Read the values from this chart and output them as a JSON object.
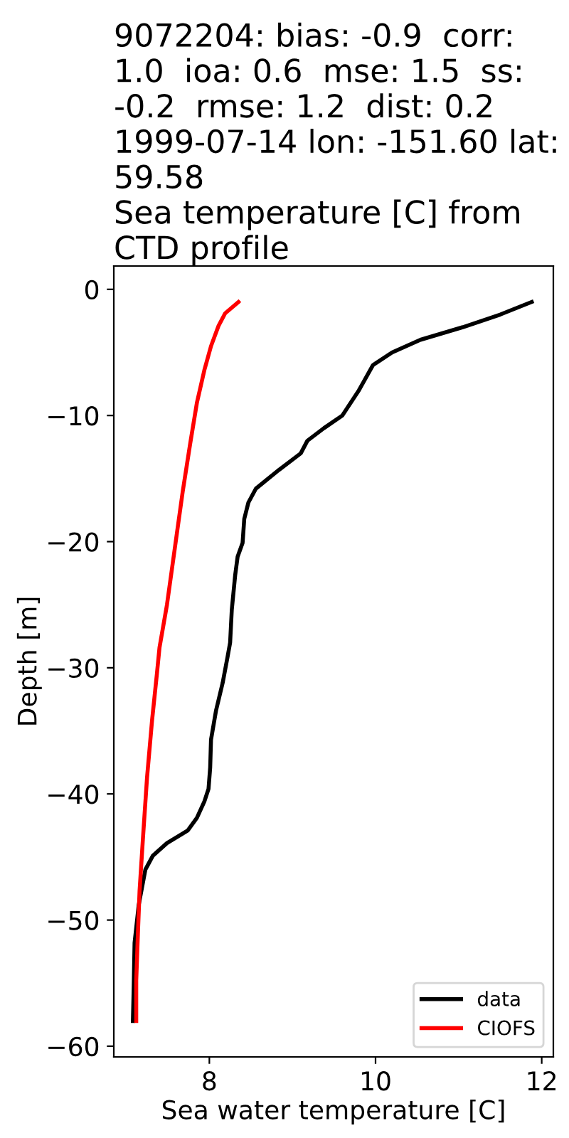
{
  "chart_data": {
    "type": "line",
    "title": "9072204: bias: -0.9  corr: 1.0  ioa: 0.6  mse: 1.5  ss: -0.2  rmse: 1.2  dist: 0.2\n1999-07-14 lon: -151.60 lat: 59.58\nSea temperature [C] from CTD profile",
    "xlabel": "Sea water temperature [C]",
    "ylabel": "Depth [m]",
    "series": [
      {
        "name": "data",
        "color": "#000000",
        "x": [
          11.88,
          11.5,
          11.05,
          10.54,
          10.2,
          9.97,
          9.8,
          9.6,
          9.38,
          9.18,
          9.1,
          8.84,
          8.56,
          8.47,
          8.42,
          8.4,
          8.34,
          8.31,
          8.27,
          8.25,
          8.22,
          8.16,
          8.08,
          8.02,
          8.01,
          7.99,
          7.94,
          7.85,
          7.74,
          7.49,
          7.32,
          7.23,
          7.15,
          7.1,
          7.09,
          7.08
        ],
        "values": [
          -1,
          -2,
          -3,
          -4,
          -5,
          -6,
          -8,
          -10,
          -11,
          -12,
          -13,
          -14.3,
          -15.8,
          -16.9,
          -18.2,
          -20.1,
          -21.2,
          -22.7,
          -25.4,
          -28,
          -29.1,
          -31.2,
          -33.4,
          -35.7,
          -37.9,
          -39.6,
          -40.6,
          -41.9,
          -42.9,
          -43.9,
          -44.9,
          -46,
          -48.8,
          -51.8,
          -55.2,
          -58
        ]
      },
      {
        "name": "CIOFS",
        "color": "#ff0000",
        "x": [
          8.35,
          8.19,
          8.11,
          8.02,
          7.94,
          7.85,
          7.77,
          7.68,
          7.57,
          7.49,
          7.4,
          7.37,
          7.31,
          7.25,
          7.2,
          7.16,
          7.14,
          7.12,
          7.12
        ],
        "values": [
          -1,
          -1.9,
          -2.9,
          -4.5,
          -6.4,
          -9,
          -12.2,
          -16,
          -21.2,
          -25,
          -28.4,
          -30.4,
          -34.2,
          -38.7,
          -43.6,
          -47.7,
          -51.1,
          -54.8,
          -58
        ]
      }
    ],
    "xlim": [
      6.85,
      12.14
    ],
    "xticks": [
      8,
      10,
      12
    ],
    "ylim": [
      -60.85,
      1.85
    ],
    "yticks": [
      {
        "value": -60,
        "label": "−60"
      },
      {
        "value": -50,
        "label": "−50"
      },
      {
        "value": -40,
        "label": "−40"
      },
      {
        "value": -30,
        "label": "−30"
      },
      {
        "value": -20,
        "label": "−20"
      },
      {
        "value": -10,
        "label": "−10"
      },
      0
    ],
    "legend": "bottom right",
    "grid": false,
    "line_style": "solid"
  }
}
